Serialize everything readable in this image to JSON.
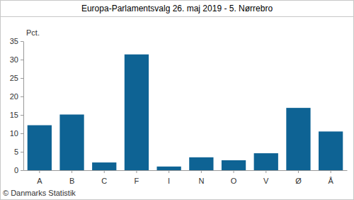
{
  "chart_data": {
    "type": "bar",
    "title": "Europa-Parlamentsvalg 26. maj 2019 - 5. Nørrebro",
    "y_label": "Pct.",
    "source": "© Danmarks Statistik",
    "categories": [
      "A",
      "B",
      "C",
      "F",
      "I",
      "N",
      "O",
      "V",
      "Ø",
      "Å"
    ],
    "values": [
      12.2,
      15.1,
      2.1,
      31.4,
      1.0,
      3.5,
      2.7,
      4.6,
      16.9,
      10.5
    ],
    "color": "#0e6394",
    "ylim": [
      0,
      35
    ],
    "yticks": [
      0,
      5,
      10,
      15,
      20,
      25,
      30,
      35
    ],
    "grid": false
  }
}
